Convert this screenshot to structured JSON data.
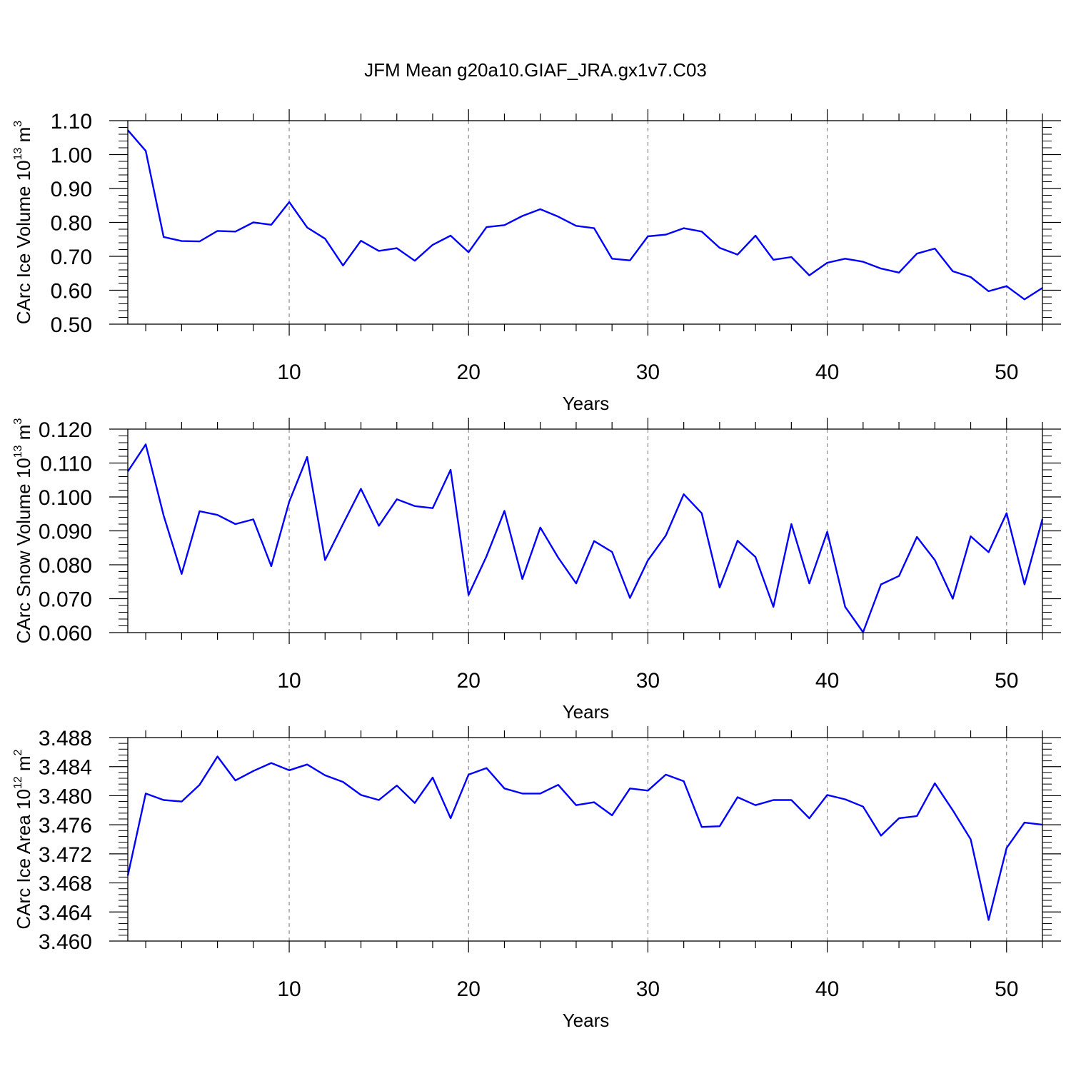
{
  "figure_title": "JFM Mean g20a10.GIAF_JRA.gx1v7.C03",
  "chart_data": [
    {
      "type": "line",
      "xlabel": "Years",
      "ylabel": {
        "main": "CArc Ice Volume 10",
        "exp": "13",
        "unit": " m",
        "unit_exp": "3"
      },
      "xlim": [
        1,
        52
      ],
      "ylim": [
        0.5,
        1.1
      ],
      "xticks": [
        10,
        20,
        30,
        40,
        50
      ],
      "yticks": [
        "0.50",
        "0.60",
        "0.70",
        "0.80",
        "0.90",
        "1.00",
        "1.10"
      ],
      "grid": "vertical-dashed",
      "line_color": "#0000ff",
      "x": [
        1,
        2,
        3,
        4,
        5,
        6,
        7,
        8,
        9,
        10,
        11,
        12,
        13,
        14,
        15,
        16,
        17,
        18,
        19,
        20,
        21,
        22,
        23,
        24,
        25,
        26,
        27,
        28,
        29,
        30,
        31,
        32,
        33,
        34,
        35,
        36,
        37,
        38,
        39,
        40,
        41,
        42,
        43,
        44,
        45,
        46,
        47,
        48,
        49,
        50,
        51,
        52
      ],
      "values": [
        1.072,
        1.011,
        0.757,
        0.745,
        0.744,
        0.775,
        0.773,
        0.8,
        0.793,
        0.86,
        0.785,
        0.752,
        0.673,
        0.746,
        0.716,
        0.724,
        0.687,
        0.734,
        0.761,
        0.712,
        0.786,
        0.792,
        0.819,
        0.839,
        0.817,
        0.79,
        0.783,
        0.693,
        0.688,
        0.759,
        0.764,
        0.783,
        0.773,
        0.725,
        0.705,
        0.761,
        0.69,
        0.698,
        0.644,
        0.681,
        0.693,
        0.684,
        0.664,
        0.652,
        0.708,
        0.723,
        0.656,
        0.639,
        0.597,
        0.612,
        0.573,
        0.607
      ]
    },
    {
      "type": "line",
      "xlabel": "Years",
      "ylabel": {
        "main": "CArc Snow Volume 10",
        "exp": "13",
        "unit": " m",
        "unit_exp": "3"
      },
      "xlim": [
        1,
        52
      ],
      "ylim": [
        0.06,
        0.12
      ],
      "xticks": [
        10,
        20,
        30,
        40,
        50
      ],
      "yticks": [
        "0.060",
        "0.070",
        "0.080",
        "0.090",
        "0.100",
        "0.110",
        "0.120"
      ],
      "grid": "vertical-dashed",
      "line_color": "#0000ff",
      "x": [
        1,
        2,
        3,
        4,
        5,
        6,
        7,
        8,
        9,
        10,
        11,
        12,
        13,
        14,
        15,
        16,
        17,
        18,
        19,
        20,
        21,
        22,
        23,
        24,
        25,
        26,
        27,
        28,
        29,
        30,
        31,
        32,
        33,
        34,
        35,
        36,
        37,
        38,
        39,
        40,
        41,
        42,
        43,
        44,
        45,
        46,
        47,
        48,
        49,
        50,
        51,
        52
      ],
      "values": [
        0.1075,
        0.1155,
        0.0945,
        0.0773,
        0.0958,
        0.0947,
        0.092,
        0.0934,
        0.0796,
        0.0986,
        0.1118,
        0.0814,
        0.092,
        0.1024,
        0.0915,
        0.0993,
        0.0973,
        0.0967,
        0.108,
        0.0711,
        0.0825,
        0.0959,
        0.0758,
        0.091,
        0.0821,
        0.0745,
        0.087,
        0.0838,
        0.0702,
        0.0813,
        0.0886,
        0.1008,
        0.0952,
        0.0733,
        0.0871,
        0.0823,
        0.0676,
        0.092,
        0.0745,
        0.0897,
        0.0676,
        0.0601,
        0.0742,
        0.0767,
        0.0882,
        0.0814,
        0.07,
        0.0884,
        0.0837,
        0.0952,
        0.0742,
        0.0935
      ]
    },
    {
      "type": "line",
      "xlabel": "Years",
      "ylabel": {
        "main": "CArc Ice Area 10",
        "exp": "12",
        "unit": " m",
        "unit_exp": "2"
      },
      "xlim": [
        1,
        52
      ],
      "ylim": [
        3.46,
        3.488
      ],
      "xticks": [
        10,
        20,
        30,
        40,
        50
      ],
      "yticks": [
        "3.460",
        "3.464",
        "3.468",
        "3.472",
        "3.476",
        "3.480",
        "3.484",
        "3.488"
      ],
      "grid": "vertical-dashed",
      "line_color": "#0000ff",
      "x": [
        1,
        2,
        3,
        4,
        5,
        6,
        7,
        8,
        9,
        10,
        11,
        12,
        13,
        14,
        15,
        16,
        17,
        18,
        19,
        20,
        21,
        22,
        23,
        24,
        25,
        26,
        27,
        28,
        29,
        30,
        31,
        32,
        33,
        34,
        35,
        36,
        37,
        38,
        39,
        40,
        41,
        42,
        43,
        44,
        45,
        46,
        47,
        48,
        49,
        50,
        51,
        52
      ],
      "values": [
        3.469,
        3.4803,
        3.4794,
        3.4792,
        3.4815,
        3.4854,
        3.4821,
        3.4834,
        3.4845,
        3.4835,
        3.4843,
        3.4828,
        3.4819,
        3.4801,
        3.4794,
        3.4814,
        3.479,
        3.4825,
        3.4769,
        3.4829,
        3.4838,
        3.481,
        3.4803,
        3.4803,
        3.4815,
        3.4787,
        3.4791,
        3.4773,
        3.481,
        3.4807,
        3.4829,
        3.482,
        3.4757,
        3.4758,
        3.4798,
        3.4787,
        3.4794,
        3.4794,
        3.4769,
        3.4801,
        3.4795,
        3.4785,
        3.4745,
        3.4769,
        3.4772,
        3.4817,
        3.478,
        3.474,
        3.4629,
        3.4728,
        3.4763,
        3.476
      ]
    }
  ]
}
